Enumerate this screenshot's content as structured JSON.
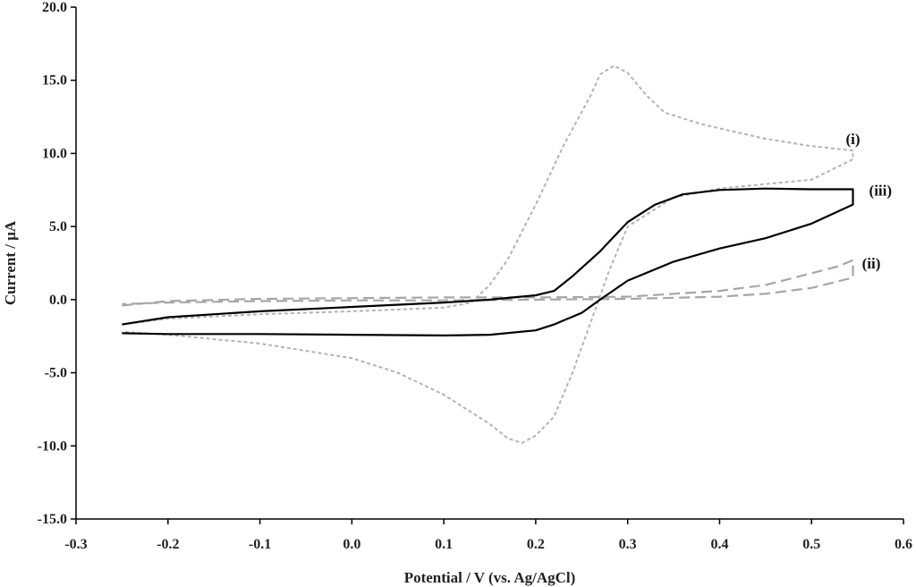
{
  "chart_data": {
    "type": "line",
    "title": "",
    "xlabel": "Potential / V (vs. Ag/AgCl)",
    "ylabel": "Current / μA",
    "xlim": [
      -0.3,
      0.6
    ],
    "ylim": [
      -15.0,
      20.0
    ],
    "x_ticks": [
      "-0.3",
      "-0.2",
      "-0.1",
      "0.0",
      "0.1",
      "0.2",
      "0.3",
      "0.4",
      "0.5",
      "0.6"
    ],
    "y_ticks": [
      "-15.0",
      "-10.0",
      "-5.0",
      "0.0",
      "5.0",
      "10.0",
      "15.0",
      "20.0"
    ],
    "grid": false,
    "series": [
      {
        "name": "(i)",
        "style": "dotted",
        "color": "#b3b3b3",
        "points": [
          [
            -0.25,
            -1.7
          ],
          [
            -0.2,
            -1.3
          ],
          [
            -0.1,
            -1.0
          ],
          [
            0.0,
            -0.8
          ],
          [
            0.1,
            -0.55
          ],
          [
            0.13,
            -0.2
          ],
          [
            0.15,
            1.0
          ],
          [
            0.17,
            2.8
          ],
          [
            0.2,
            6.5
          ],
          [
            0.23,
            10.5
          ],
          [
            0.26,
            14.0
          ],
          [
            0.27,
            15.4
          ],
          [
            0.285,
            16.0
          ],
          [
            0.3,
            15.5
          ],
          [
            0.32,
            14.0
          ],
          [
            0.34,
            12.8
          ],
          [
            0.38,
            12.0
          ],
          [
            0.45,
            11.0
          ],
          [
            0.5,
            10.5
          ],
          [
            0.545,
            10.2
          ],
          [
            0.545,
            9.6
          ],
          [
            0.5,
            8.2
          ],
          [
            0.45,
            7.9
          ],
          [
            0.4,
            7.6
          ],
          [
            0.35,
            7.0
          ],
          [
            0.3,
            5.0
          ],
          [
            0.28,
            2.0
          ],
          [
            0.26,
            -1.5
          ],
          [
            0.24,
            -5.0
          ],
          [
            0.22,
            -8.0
          ],
          [
            0.2,
            -9.3
          ],
          [
            0.185,
            -9.8
          ],
          [
            0.17,
            -9.5
          ],
          [
            0.15,
            -8.5
          ],
          [
            0.1,
            -6.5
          ],
          [
            0.05,
            -5.0
          ],
          [
            0.0,
            -4.0
          ],
          [
            -0.1,
            -3.0
          ],
          [
            -0.2,
            -2.4
          ],
          [
            -0.25,
            -2.2
          ]
        ]
      },
      {
        "name": "(ii)",
        "style": "dashed",
        "color": "#a6a6a6",
        "points": [
          [
            -0.25,
            -0.4
          ],
          [
            -0.2,
            -0.1
          ],
          [
            -0.1,
            0.05
          ],
          [
            0.0,
            0.1
          ],
          [
            0.1,
            0.15
          ],
          [
            0.2,
            0.15
          ],
          [
            0.3,
            0.2
          ],
          [
            0.4,
            0.6
          ],
          [
            0.45,
            1.0
          ],
          [
            0.5,
            1.8
          ],
          [
            0.53,
            2.3
          ],
          [
            0.545,
            2.7
          ],
          [
            0.545,
            1.5
          ],
          [
            0.5,
            0.8
          ],
          [
            0.45,
            0.4
          ],
          [
            0.4,
            0.2
          ],
          [
            0.3,
            0.05
          ],
          [
            0.2,
            0.0
          ],
          [
            0.1,
            -0.05
          ],
          [
            0.0,
            -0.05
          ],
          [
            -0.1,
            -0.1
          ],
          [
            -0.2,
            -0.2
          ],
          [
            -0.25,
            -0.3
          ]
        ]
      },
      {
        "name": "(iii)",
        "style": "solid",
        "color": "#000000",
        "points": [
          [
            -0.25,
            -1.7
          ],
          [
            -0.2,
            -1.2
          ],
          [
            -0.1,
            -0.8
          ],
          [
            0.0,
            -0.5
          ],
          [
            0.1,
            -0.2
          ],
          [
            0.15,
            0.0
          ],
          [
            0.2,
            0.3
          ],
          [
            0.22,
            0.6
          ],
          [
            0.24,
            1.6
          ],
          [
            0.27,
            3.3
          ],
          [
            0.3,
            5.3
          ],
          [
            0.33,
            6.5
          ],
          [
            0.36,
            7.2
          ],
          [
            0.4,
            7.5
          ],
          [
            0.45,
            7.6
          ],
          [
            0.5,
            7.55
          ],
          [
            0.545,
            7.55
          ],
          [
            0.545,
            6.5
          ],
          [
            0.5,
            5.2
          ],
          [
            0.45,
            4.2
          ],
          [
            0.4,
            3.5
          ],
          [
            0.35,
            2.6
          ],
          [
            0.3,
            1.3
          ],
          [
            0.27,
            0.0
          ],
          [
            0.25,
            -0.9
          ],
          [
            0.22,
            -1.7
          ],
          [
            0.2,
            -2.1
          ],
          [
            0.15,
            -2.4
          ],
          [
            0.1,
            -2.45
          ],
          [
            0.0,
            -2.4
          ],
          [
            -0.1,
            -2.35
          ],
          [
            -0.2,
            -2.35
          ],
          [
            -0.25,
            -2.3
          ]
        ]
      }
    ],
    "annotations": [
      {
        "text": "(i)",
        "x": 0.545,
        "y": 11.0
      },
      {
        "text": "(iii)",
        "x": 0.575,
        "y": 7.5
      },
      {
        "text": "(ii)",
        "x": 0.565,
        "y": 2.5
      }
    ]
  }
}
